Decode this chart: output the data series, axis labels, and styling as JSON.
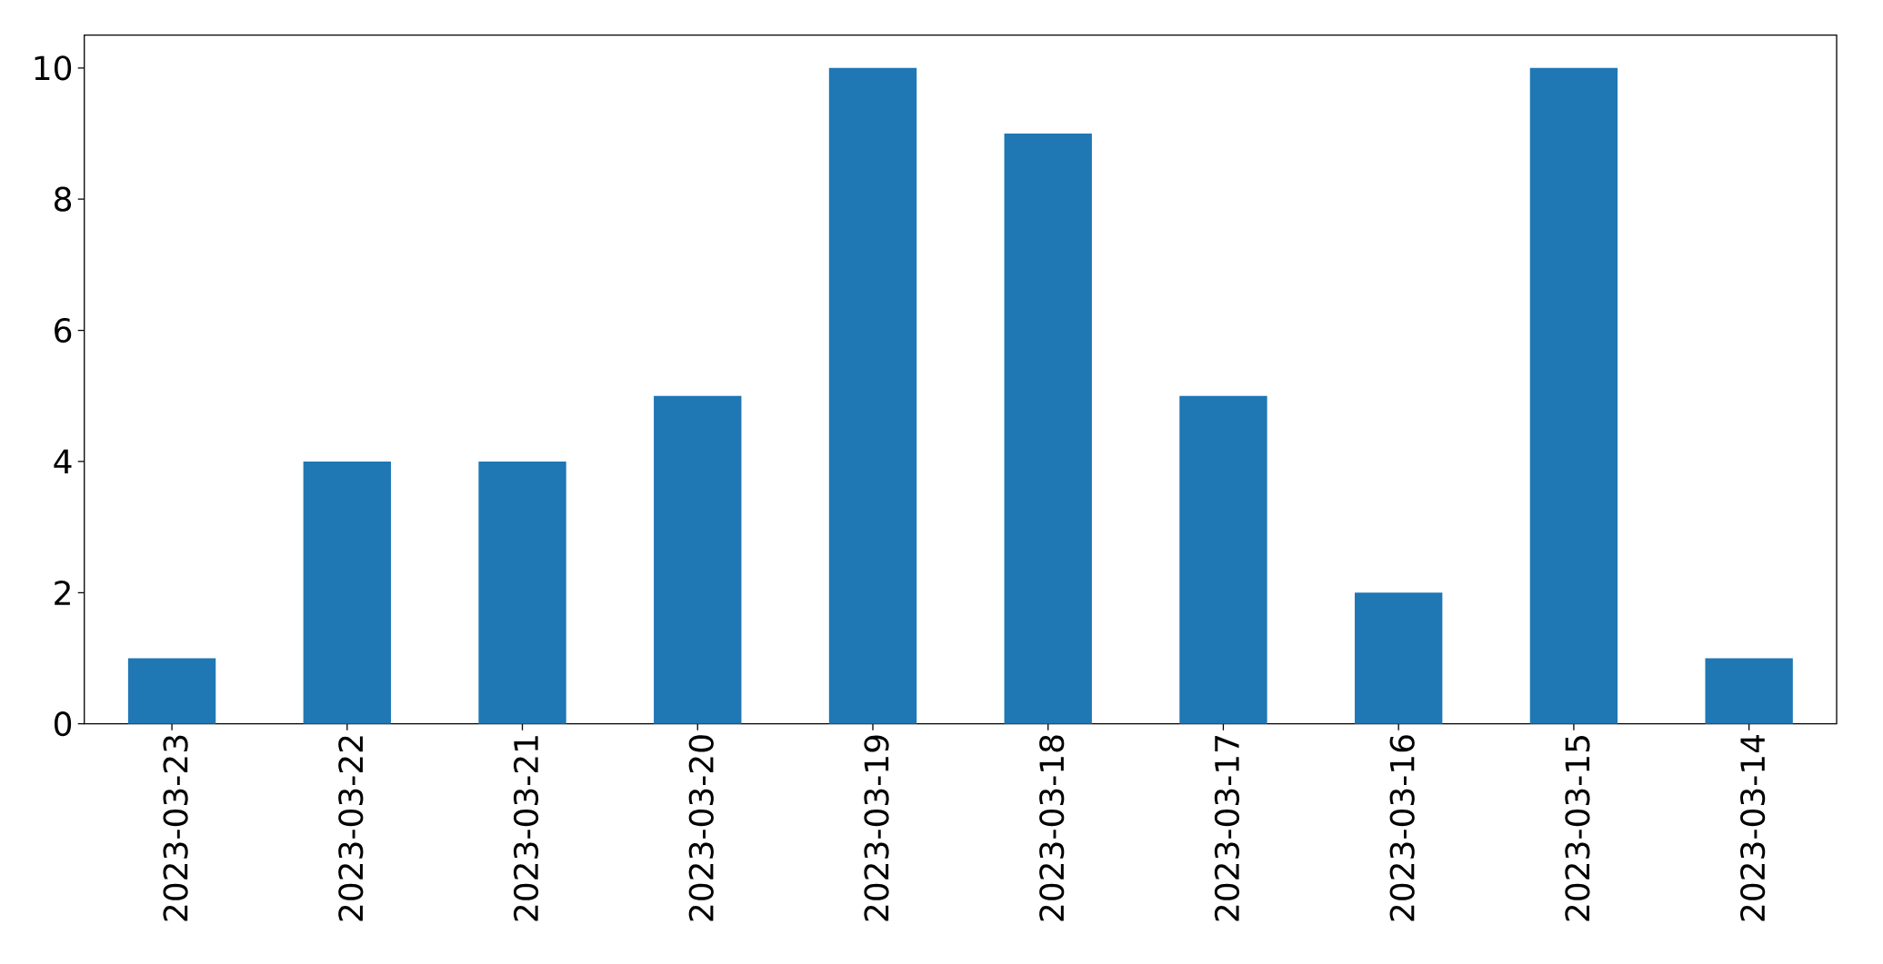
{
  "chart_data": {
    "type": "bar",
    "categories": [
      "2023-03-23",
      "2023-03-22",
      "2023-03-21",
      "2023-03-20",
      "2023-03-19",
      "2023-03-18",
      "2023-03-17",
      "2023-03-16",
      "2023-03-15",
      "2023-03-14"
    ],
    "values": [
      1,
      4,
      4,
      5,
      10,
      9,
      5,
      2,
      10,
      1
    ],
    "color": "#1f77b4",
    "ylim": [
      0,
      10.5
    ],
    "yticks": [
      0,
      2,
      4,
      6,
      8,
      10
    ]
  }
}
